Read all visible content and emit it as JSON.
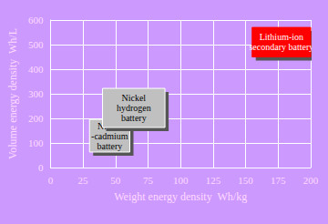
{
  "chart_data": {
    "type": "box_region",
    "x_label": "Weight energy density  Wh/kg",
    "y_label": "Volume energy density  Wh/L",
    "series": [
      {
        "name": "Nickel\n-cadmium\nbattery",
        "color": "#c0c0c0",
        "xrange": [
          30,
          61
        ],
        "yrange": [
          63,
          196
        ]
      },
      {
        "name": "Nickel\nhydrogen\nbattery",
        "color": "#c0c0c0",
        "xrange": [
          40,
          88
        ],
        "yrange": [
          163,
          322
        ]
      },
      {
        "name": "Lithium-ion\nsecondary battery",
        "color": "#ff0000",
        "xrange": [
          155,
          200
        ],
        "yrange": [
          450,
          570
        ]
      }
    ],
    "xlim": [
      0,
      200
    ],
    "ylim": [
      0,
      600
    ],
    "xticks": [
      0,
      25,
      50,
      75,
      100,
      125,
      150,
      175,
      200
    ],
    "yticks": [
      0,
      100,
      200,
      300,
      400,
      500,
      600
    ],
    "grid": true
  }
}
